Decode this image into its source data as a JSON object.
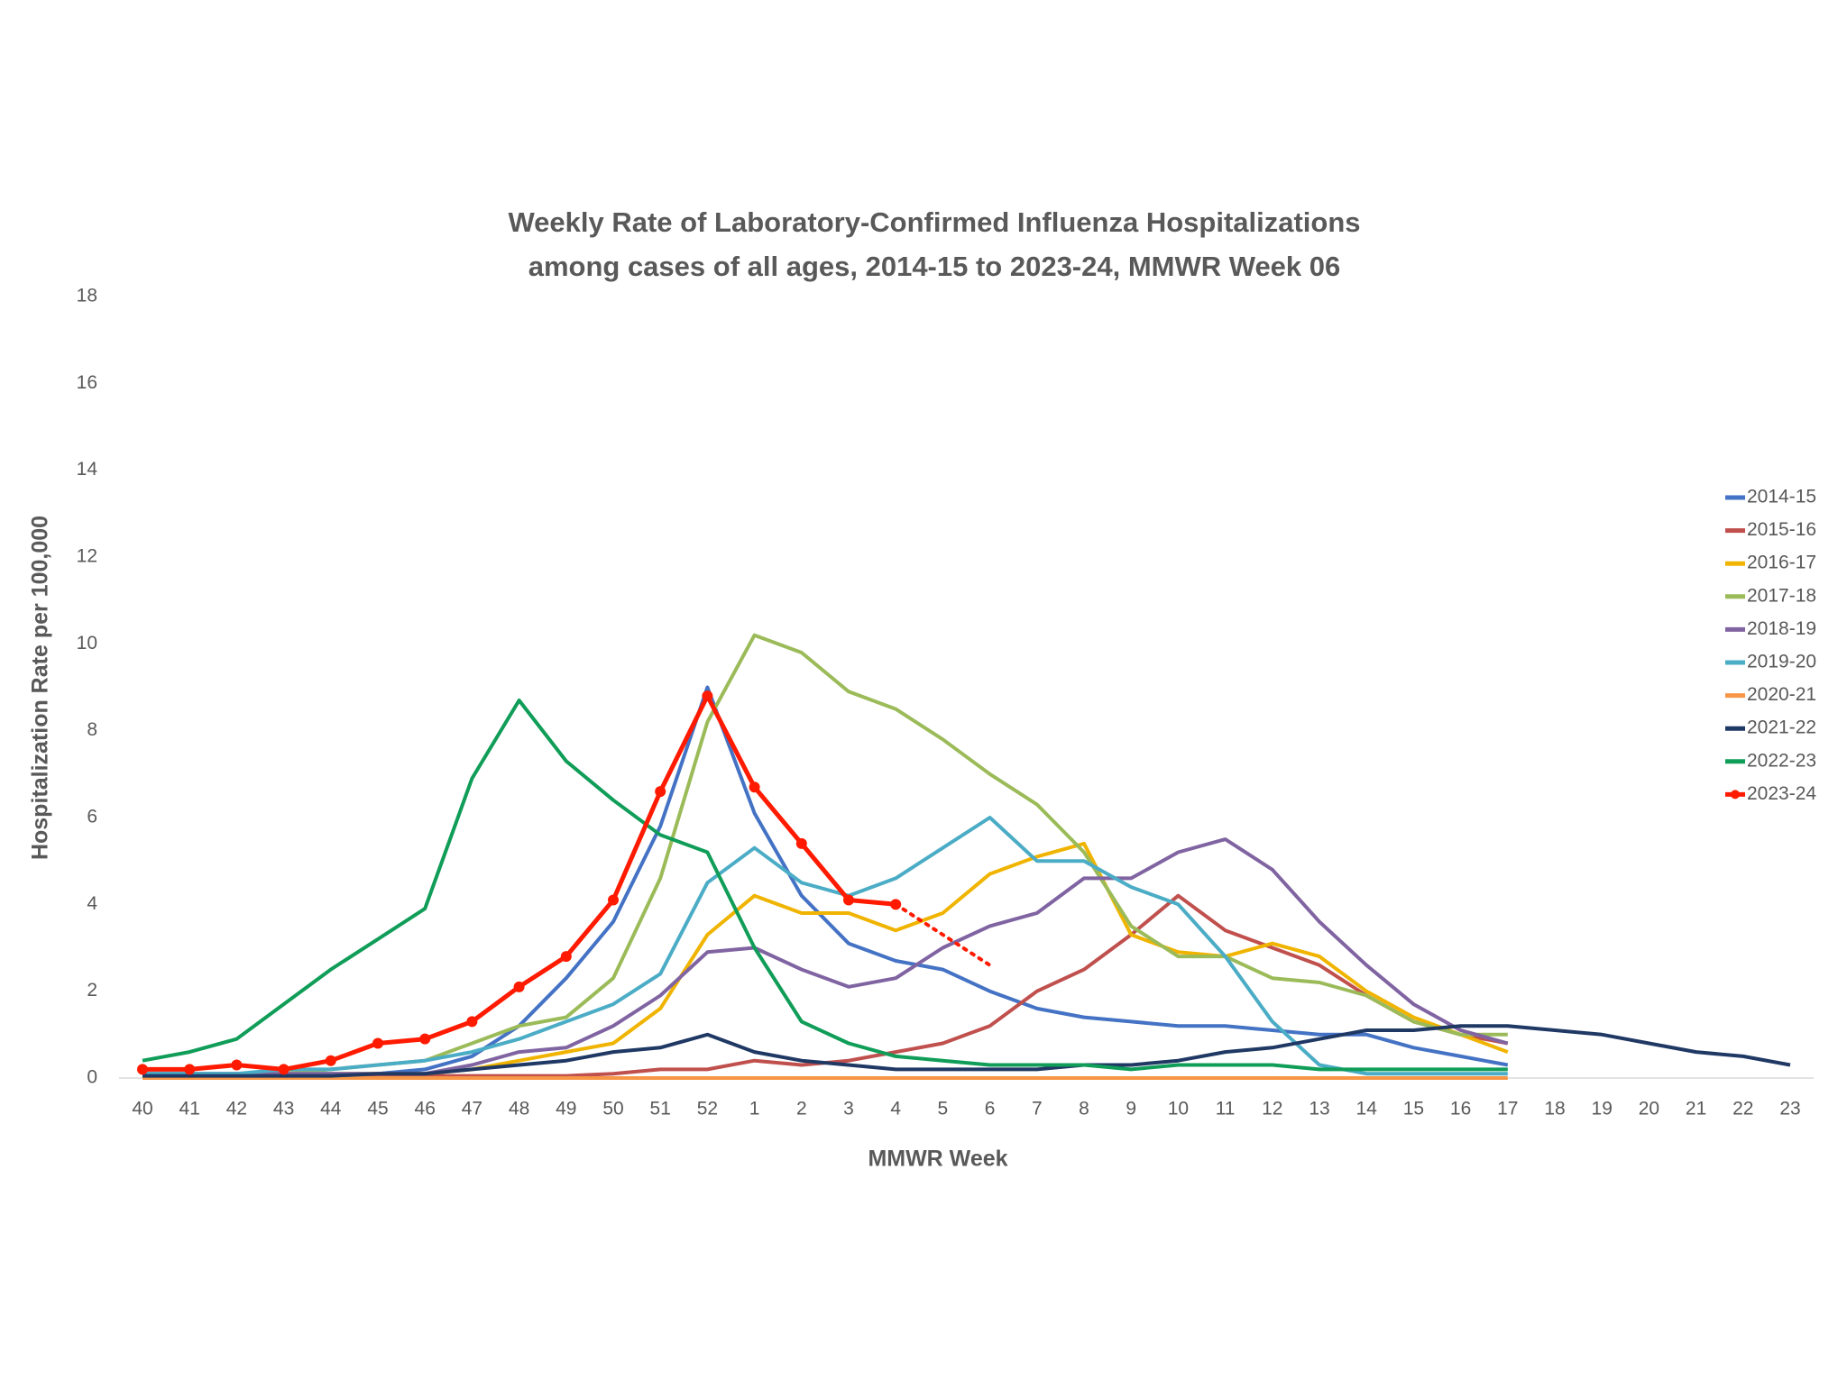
{
  "chart_data": {
    "type": "line",
    "title": [
      "Weekly Rate of Laboratory-Confirmed Influenza Hospitalizations",
      "among cases of all ages, 2014-15 to 2023-24, MMWR Week 06"
    ],
    "x_label": "MMWR Week",
    "y_label": "Hospitalization Rate per 100,000",
    "categories": [
      "40",
      "41",
      "42",
      "43",
      "44",
      "45",
      "46",
      "47",
      "48",
      "49",
      "50",
      "51",
      "52",
      "1",
      "2",
      "3",
      "4",
      "5",
      "6",
      "7",
      "8",
      "9",
      "10",
      "11",
      "12",
      "13",
      "14",
      "15",
      "16",
      "17",
      "18",
      "19",
      "20",
      "21",
      "22",
      "23"
    ],
    "ylim": [
      0,
      18
    ],
    "yticks": [
      0,
      2,
      4,
      6,
      8,
      10,
      12,
      14,
      16,
      18
    ],
    "grid": false,
    "legend": "right",
    "series": [
      {
        "name": "2014-15",
        "color": "#4472c4",
        "values": [
          0.1,
          0.1,
          0.1,
          0.1,
          0.1,
          0.1,
          0.2,
          0.5,
          1.2,
          2.3,
          3.6,
          5.8,
          9.0,
          6.1,
          4.2,
          3.1,
          2.7,
          2.5,
          2.0,
          1.6,
          1.4,
          1.3,
          1.2,
          1.2,
          1.1,
          1.0,
          1.0,
          0.7,
          0.5,
          0.3,
          null,
          null,
          null,
          null,
          null,
          null
        ]
      },
      {
        "name": "2015-16",
        "color": "#c0504d",
        "values": [
          0.05,
          0.05,
          0.05,
          0.05,
          0.05,
          0.05,
          0.05,
          0.05,
          0.05,
          0.05,
          0.1,
          0.2,
          0.2,
          0.4,
          0.3,
          0.4,
          0.6,
          0.8,
          1.2,
          2.0,
          2.5,
          3.3,
          4.2,
          3.4,
          3.0,
          2.6,
          1.9,
          1.3,
          1.0,
          0.8,
          null,
          null,
          null,
          null,
          null,
          null
        ]
      },
      {
        "name": "2016-17",
        "color": "#f0b400",
        "values": [
          0.05,
          0.05,
          0.05,
          0.05,
          0.1,
          0.1,
          0.1,
          0.2,
          0.4,
          0.6,
          0.8,
          1.6,
          3.3,
          4.2,
          3.8,
          3.8,
          3.4,
          3.8,
          4.7,
          5.1,
          5.4,
          3.3,
          2.9,
          2.8,
          3.1,
          2.8,
          2.0,
          1.4,
          1.0,
          0.6,
          null,
          null,
          null,
          null,
          null,
          null
        ]
      },
      {
        "name": "2017-18",
        "color": "#9bbb59",
        "values": [
          0.1,
          0.1,
          0.1,
          0.1,
          0.2,
          0.3,
          0.4,
          0.8,
          1.2,
          1.4,
          2.3,
          4.6,
          8.2,
          10.2,
          9.8,
          8.9,
          8.5,
          7.8,
          7.0,
          6.3,
          5.2,
          3.5,
          2.8,
          2.8,
          2.3,
          2.2,
          1.9,
          1.3,
          1.0,
          1.0,
          null,
          null,
          null,
          null,
          null,
          null
        ]
      },
      {
        "name": "2018-19",
        "color": "#8064a2",
        "values": [
          0.1,
          0.1,
          0.1,
          0.1,
          0.1,
          0.1,
          0.1,
          0.3,
          0.6,
          0.7,
          1.2,
          1.9,
          2.9,
          3.0,
          2.5,
          2.1,
          2.3,
          3.0,
          3.5,
          3.8,
          4.6,
          4.6,
          5.2,
          5.5,
          4.8,
          3.6,
          2.6,
          1.7,
          1.1,
          0.8,
          null,
          null,
          null,
          null,
          null,
          null
        ]
      },
      {
        "name": "2019-20",
        "color": "#4bacc6",
        "values": [
          0.1,
          0.1,
          0.1,
          0.2,
          0.2,
          0.3,
          0.4,
          0.6,
          0.9,
          1.3,
          1.7,
          2.4,
          4.5,
          5.3,
          4.5,
          4.2,
          4.6,
          5.3,
          6.0,
          5.0,
          5.0,
          4.4,
          4.0,
          2.8,
          1.3,
          0.3,
          0.1,
          0.1,
          0.1,
          0.1,
          null,
          null,
          null,
          null,
          null,
          null
        ]
      },
      {
        "name": "2020-21",
        "color": "#f79646",
        "values": [
          0,
          0,
          0,
          0,
          0,
          0,
          0,
          0,
          0,
          0,
          0,
          0,
          0,
          0,
          0,
          0,
          0,
          0,
          0,
          0,
          0,
          0,
          0,
          0,
          0,
          0,
          0,
          0,
          0,
          0,
          null,
          null,
          null,
          null,
          null,
          null
        ]
      },
      {
        "name": "2021-22",
        "color": "#1f3864",
        "values": [
          0.05,
          0.05,
          0.05,
          0.05,
          0.05,
          0.1,
          0.1,
          0.2,
          0.3,
          0.4,
          0.6,
          0.7,
          1.0,
          0.6,
          0.4,
          0.3,
          0.2,
          0.2,
          0.2,
          0.2,
          0.3,
          0.3,
          0.4,
          0.6,
          0.7,
          0.9,
          1.1,
          1.1,
          1.2,
          1.2,
          1.1,
          1.0,
          0.8,
          0.6,
          0.5,
          0.3
        ]
      },
      {
        "name": "2022-23",
        "color": "#0f9d58",
        "values": [
          0.4,
          0.6,
          0.9,
          1.7,
          2.5,
          3.2,
          3.9,
          6.9,
          8.7,
          7.3,
          6.4,
          5.6,
          5.2,
          3.0,
          1.3,
          0.8,
          0.5,
          0.4,
          0.3,
          0.3,
          0.3,
          0.2,
          0.3,
          0.3,
          0.3,
          0.2,
          0.2,
          0.2,
          0.2,
          0.2,
          null,
          null,
          null,
          null,
          null,
          null
        ]
      },
      {
        "name": "2023-24",
        "color": "#ff1a00",
        "markers": true,
        "values": [
          0.2,
          0.2,
          0.3,
          0.2,
          0.4,
          0.8,
          0.9,
          1.3,
          2.1,
          2.8,
          4.1,
          6.6,
          8.8,
          6.7,
          5.4,
          4.1,
          4.0,
          null,
          null,
          null,
          null,
          null,
          null,
          null,
          null,
          null,
          null,
          null,
          null,
          null,
          null,
          null,
          null,
          null,
          null,
          null
        ],
        "projected_values": [
          null,
          null,
          null,
          null,
          null,
          null,
          null,
          null,
          null,
          null,
          null,
          null,
          null,
          null,
          null,
          null,
          4.0,
          3.3,
          2.6,
          null,
          null,
          null,
          null,
          null,
          null,
          null,
          null,
          null,
          null,
          null,
          null,
          null,
          null,
          null,
          null,
          null
        ]
      }
    ]
  }
}
